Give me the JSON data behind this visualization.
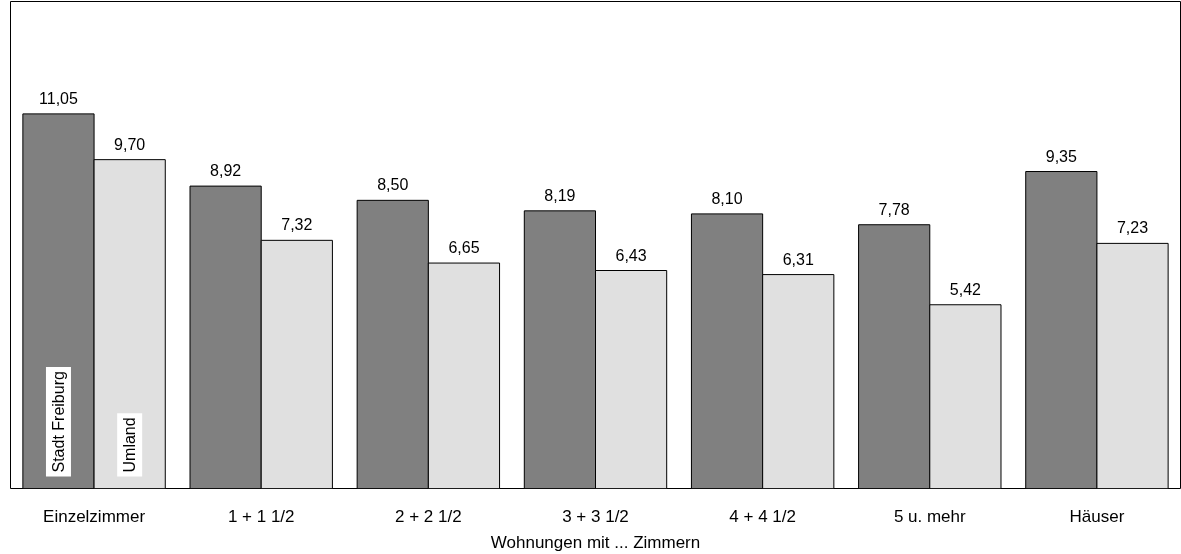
{
  "chart_data": {
    "type": "bar",
    "xlabel": "Wohnungen mit ... Zimmern",
    "categories": [
      "Einzelzimmer",
      "1 + 1 1/2",
      "2 + 2 1/2",
      "3 + 3 1/2",
      "4 + 4 1/2",
      "5 u. mehr",
      "Häuser"
    ],
    "series": [
      {
        "name": "Stadt Freiburg",
        "color": "#808080",
        "values": [
          11.05,
          8.92,
          8.5,
          8.19,
          8.1,
          7.78,
          9.35
        ],
        "value_labels": [
          "11,05",
          "8,92",
          "8,50",
          "8,19",
          "8,10",
          "7,78",
          "9,35"
        ]
      },
      {
        "name": "Umland",
        "color": "#e0e0e0",
        "values": [
          9.7,
          7.32,
          6.65,
          6.43,
          6.31,
          5.42,
          7.23
        ],
        "value_labels": [
          "9,70",
          "7,32",
          "6,65",
          "6,43",
          "6,31",
          "5,42",
          "7,23"
        ]
      }
    ],
    "grid": false,
    "tick_labels": "x"
  }
}
